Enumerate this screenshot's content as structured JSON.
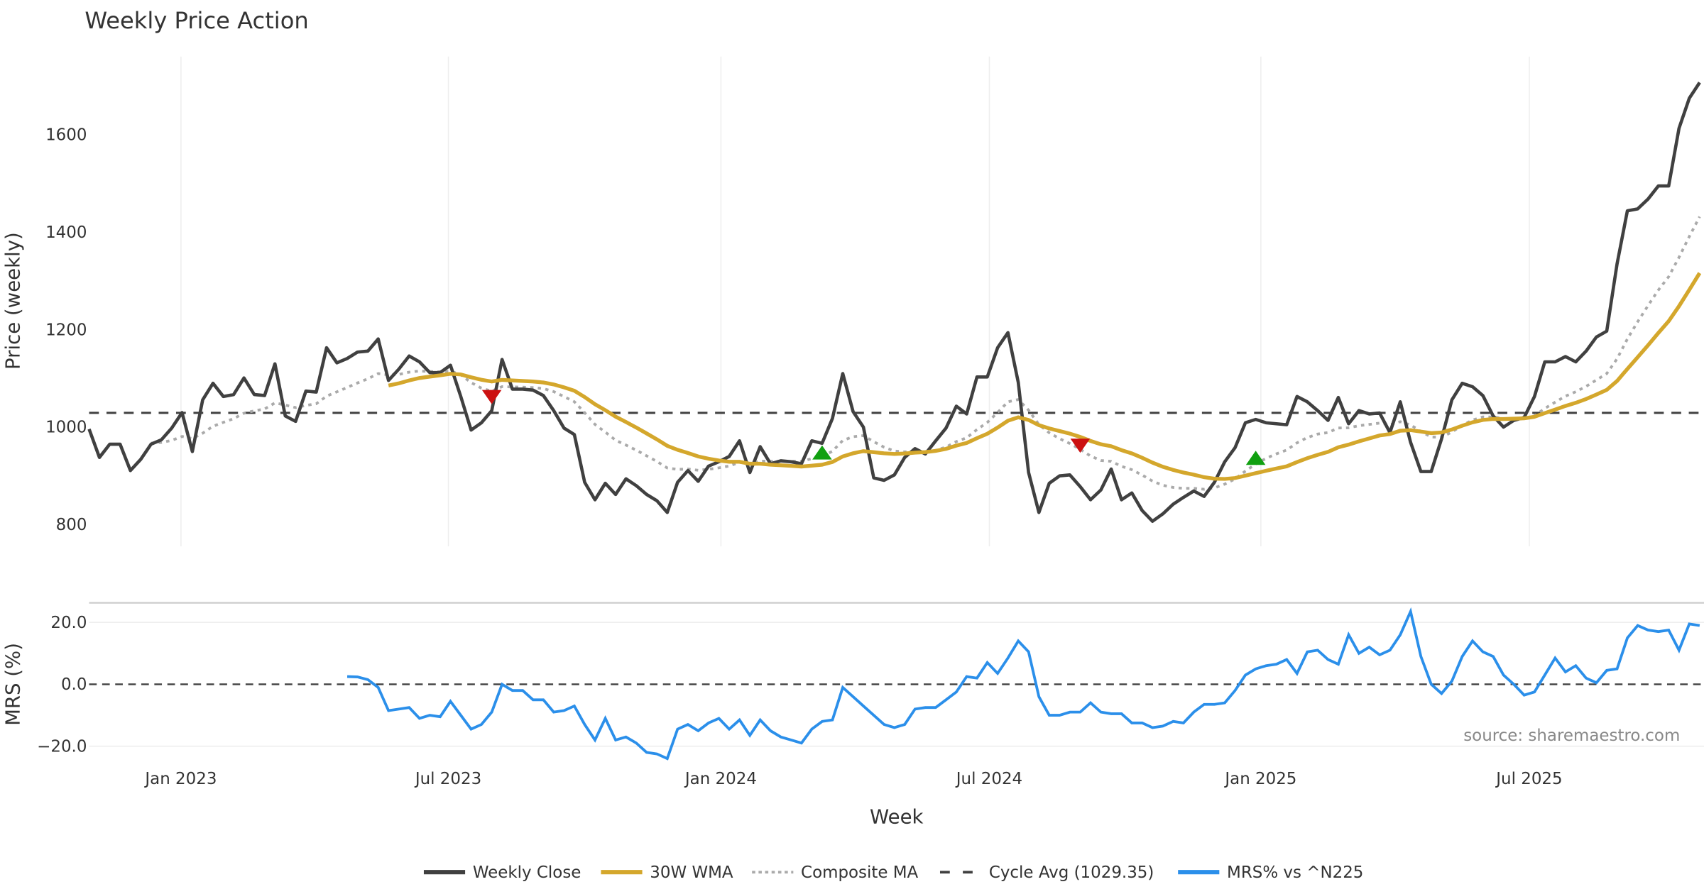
{
  "chart_data": [
    {
      "type": "line",
      "title": "Weekly Price Action",
      "ylabel": "Price (weekly)",
      "xlabel": "Week",
      "ylim": [
        750,
        1760
      ],
      "yticks": [
        800,
        1000,
        1200,
        1400,
        1600
      ],
      "grid": true,
      "x_tick_labels": [
        "Jan 2023",
        "Jul 2023",
        "Jan 2024",
        "Jul 2024",
        "Jan 2025",
        "Jul 2025"
      ],
      "x_tick_week_index": [
        8.9,
        34.8,
        61.2,
        87.2,
        113.5,
        139.5
      ],
      "weekly_close": [
        996,
        938,
        965,
        965,
        911,
        934,
        965,
        974,
        998,
        1030,
        950,
        1056,
        1090,
        1063,
        1067,
        1101,
        1067,
        1065,
        1130,
        1023,
        1012,
        1074,
        1072,
        1163,
        1132,
        1141,
        1154,
        1156,
        1181,
        1096,
        1119,
        1146,
        1134,
        1112,
        1112,
        1127,
        1063,
        994,
        1009,
        1034,
        1139,
        1078,
        1078,
        1076,
        1065,
        1034,
        998,
        985,
        887,
        851,
        885,
        862,
        894,
        880,
        862,
        849,
        825,
        887,
        911,
        889,
        920,
        929,
        940,
        972,
        907,
        960,
        925,
        931,
        929,
        925,
        972,
        967,
        1018,
        1110,
        1032,
        1000,
        896,
        891,
        902,
        938,
        956,
        945,
        972,
        998,
        1043,
        1027,
        1103,
        1103,
        1163,
        1194,
        1092,
        907,
        825,
        885,
        900,
        902,
        878,
        851,
        871,
        914,
        851,
        865,
        829,
        807,
        822,
        842,
        856,
        869,
        858,
        887,
        929,
        958,
        1009,
        1016,
        1009,
        1007,
        1005,
        1063,
        1052,
        1034,
        1014,
        1061,
        1007,
        1034,
        1027,
        1029,
        989,
        1052,
        969,
        909,
        909,
        976,
        1056,
        1090,
        1083,
        1065,
        1023,
        1000,
        1014,
        1020,
        1063,
        1134,
        1134,
        1145,
        1134,
        1156,
        1185,
        1197,
        1335,
        1444,
        1448,
        1468,
        1495,
        1495,
        1613,
        1675,
        1707
      ],
      "wma_period": 30,
      "composite_start_index": 6,
      "cycle_avg": 1029.35,
      "signals": [
        {
          "type": "sell",
          "index": 39,
          "value": 1063
        },
        {
          "type": "buy",
          "index": 71,
          "value": 947
        },
        {
          "type": "sell",
          "index": 96,
          "value": 963
        },
        {
          "type": "buy",
          "index": 113,
          "value": 936
        }
      ]
    },
    {
      "type": "line",
      "ylabel": "MRS (%)",
      "ylim": [
        -26,
        27
      ],
      "yticks": [
        20,
        0,
        -20
      ],
      "ytick_labels": [
        "20.0",
        "0.0",
        "−20.0"
      ],
      "start_index": 25,
      "mrs": [
        2.5,
        2.4,
        1.5,
        -1,
        -8.5,
        -8,
        -7.5,
        -11,
        -10,
        -10.5,
        -5.5,
        -10,
        -14.5,
        -13,
        -9,
        0,
        -2,
        -2,
        -5,
        -5,
        -9,
        -8.5,
        -7,
        -13,
        -18,
        -11,
        -18,
        -17,
        -19,
        -22,
        -22.5,
        -24,
        -14.5,
        -13,
        -15,
        -12.5,
        -11,
        -14.5,
        -11.5,
        -16.5,
        -11.5,
        -15,
        -17,
        -18,
        -19,
        -14.5,
        -12,
        -11.5,
        -1,
        -4,
        -7,
        -10,
        -13,
        -14,
        -13,
        -8,
        -7.5,
        -7.5,
        -5,
        -2.5,
        2.5,
        2,
        7,
        3.5,
        8.5,
        14,
        10.5,
        -4,
        -10,
        -10,
        -9,
        -9,
        -6,
        -9,
        -9.5,
        -9.5,
        -12.5,
        -12.5,
        -14,
        -13.5,
        -12,
        -12.5,
        -9,
        -6.5,
        -6.5,
        -6,
        -2,
        3,
        5,
        6,
        6.5,
        8,
        3.5,
        10.5,
        11,
        8,
        6.5,
        16,
        10,
        12,
        9.5,
        11,
        16,
        23.5,
        9,
        0,
        -3,
        1,
        9,
        14,
        10.5,
        9,
        3,
        0,
        -3.5,
        -2.5,
        3,
        8.5,
        4,
        6,
        2,
        0.5,
        4.5,
        5,
        15,
        19,
        17.5,
        17,
        17.5,
        11,
        19.5,
        19
      ]
    }
  ],
  "legend": [
    {
      "label": "Weekly Close",
      "color": "#404040",
      "style": "solid"
    },
    {
      "label": "30W WMA",
      "color": "#D4A72C",
      "style": "solid"
    },
    {
      "label": "Composite MA",
      "color": "#AAAAAA",
      "style": "dotted"
    },
    {
      "label": "Cycle Avg (1029.35)",
      "color": "#404040",
      "style": "dashed"
    },
    {
      "label": "MRS% vs ^N225",
      "color": "#2B8FEA",
      "style": "solid"
    }
  ],
  "source": "source: sharemaestro.com",
  "colors": {
    "sell": "#CC1111",
    "buy": "#11A011",
    "grid": "#EEEEEE"
  }
}
